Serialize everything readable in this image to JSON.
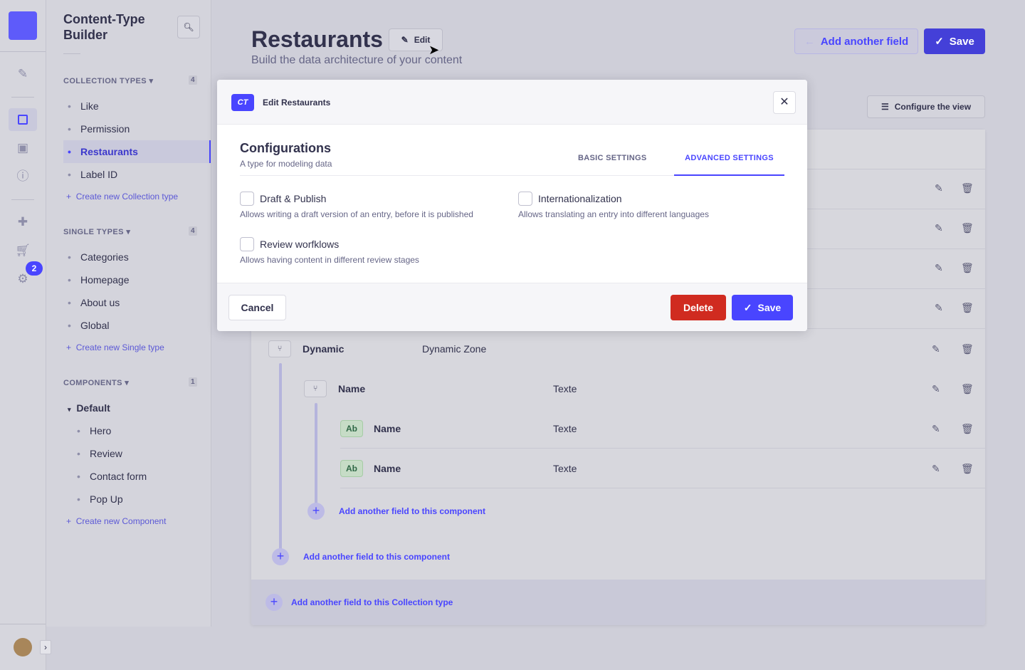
{
  "nav": {
    "badge": "2"
  },
  "sidebar": {
    "title": "Content-Type Builder",
    "collection": {
      "heading": "COLLECTION TYPES",
      "count": "4",
      "items": [
        "Like",
        "Permission",
        "Restaurants",
        "Label ID"
      ],
      "create": "Create new Collection type"
    },
    "single": {
      "heading": "SINGLE TYPES",
      "count": "4",
      "items": [
        "Categories",
        "Homepage",
        "About us",
        "Global"
      ],
      "create": "Create new Single type"
    },
    "components": {
      "heading": "COMPONENTS",
      "count": "1",
      "group": "Default",
      "items": [
        "Hero",
        "Review",
        "Contact form",
        "Pop Up"
      ],
      "create": "Create new Component"
    }
  },
  "header": {
    "title": "Restaurants",
    "edit": "Edit",
    "subtitle": "Build the data architecture of your content",
    "add_field": "Add another field",
    "save": "Save",
    "configure": "Configure the view"
  },
  "fields": {
    "dynamic": {
      "name": "Dynamic",
      "type": "Dynamic Zone"
    },
    "component": {
      "name": "Name",
      "type": "Texte"
    },
    "children": [
      {
        "icon": "Ab",
        "name": "Name",
        "type": "Texte"
      },
      {
        "icon": "Ab",
        "name": "Name",
        "type": "Texte"
      }
    ],
    "add_component_inner": "Add another field to this component",
    "add_component_outer": "Add another field to this component",
    "add_collection": "Add another field to this Collection type"
  },
  "modal": {
    "badge": "CT",
    "title": "Edit Restaurants",
    "heading": "Configurations",
    "subheading": "A type for modeling data",
    "tabs": [
      "BASIC SETTINGS",
      "ADVANCED SETTINGS"
    ],
    "active_tab": "ADVANCED SETTINGS",
    "options": [
      {
        "label": "Draft & Publish",
        "desc": "Allows writing a draft version of an entry, before it is published",
        "checked": false
      },
      {
        "label": "Internationalization",
        "desc": "Allows translating an entry into different languages",
        "checked": false
      },
      {
        "label": "Review worfklows",
        "desc": "Allows having content in different review stages",
        "checked": false
      }
    ],
    "cancel": "Cancel",
    "delete": "Delete",
    "save": "Save"
  },
  "colors": {
    "primary": "#4945ff",
    "danger": "#d02b20"
  }
}
